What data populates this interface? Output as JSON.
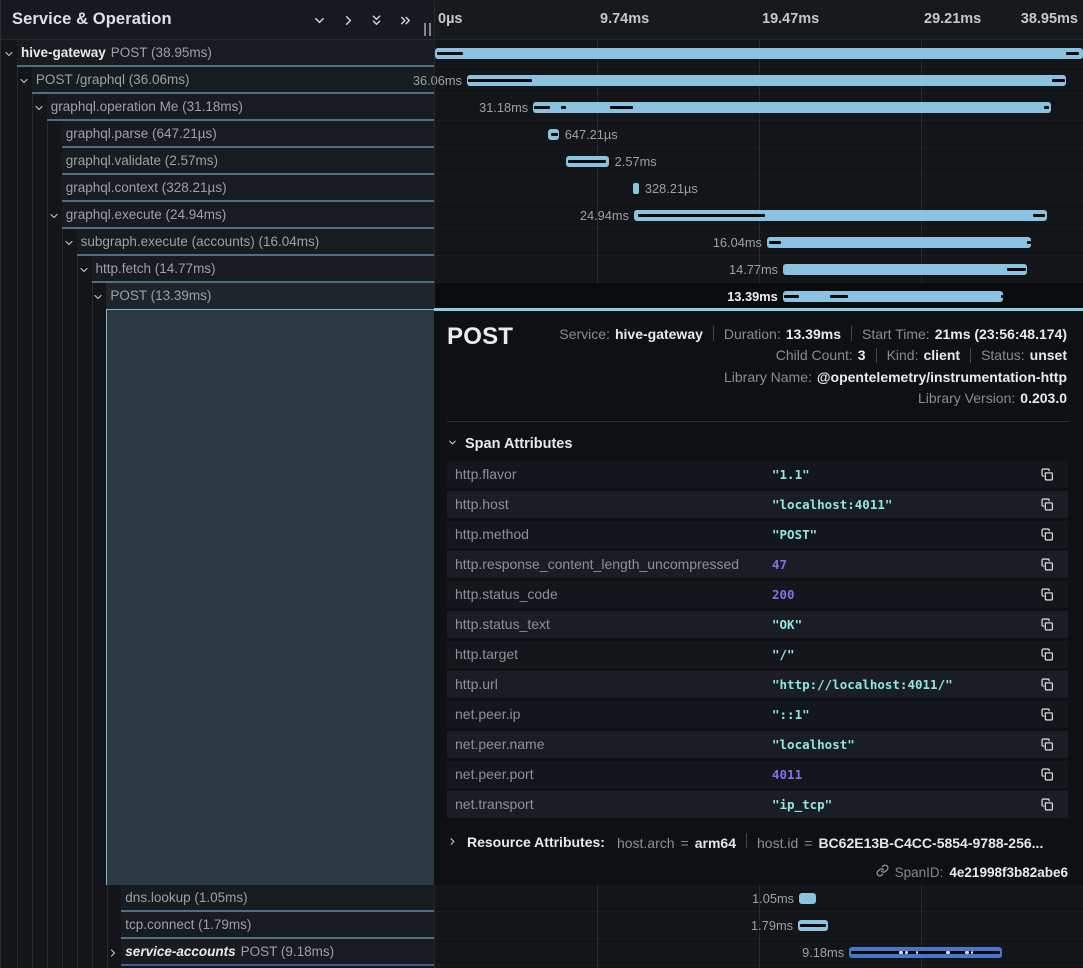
{
  "header": {
    "title": "Service & Operation",
    "icons": [
      {
        "name": "collapse-one-icon",
        "glyph": "chevron-down"
      },
      {
        "name": "expand-one-icon",
        "glyph": "chevron-right"
      },
      {
        "name": "collapse-all-icon",
        "glyph": "double-chevron-down"
      },
      {
        "name": "expand-all-icon",
        "glyph": "double-chevron-right"
      }
    ]
  },
  "timeline": {
    "total_ms": 38.95,
    "ticks": [
      "0µs",
      "9.74ms",
      "19.47ms",
      "29.21ms",
      "38.95ms"
    ]
  },
  "colors": {
    "service_hive_gateway": "#89c3e0",
    "service_accounts": "#4677c8",
    "critical_path": "#06080a",
    "string_value": "#8fe7e0",
    "number_value": "#7b74e8",
    "detail_accent": "#8ecbea"
  },
  "chart_data": {
    "type": "gantt",
    "unit": "ms",
    "xlim": [
      0,
      38.95
    ],
    "spans": [
      {
        "service": "hive-gateway",
        "name": "POST",
        "duration": "38.95ms",
        "level": 0,
        "chevron": "down",
        "color": 1,
        "start": 0,
        "dur": 38.95,
        "label": null,
        "label_pos": null,
        "crit": [
          [
            0.12,
            1.68
          ],
          [
            37.93,
            38.71
          ]
        ],
        "ticks": []
      },
      {
        "service": null,
        "name": "POST /graphql",
        "duration": "36.06ms",
        "level": 1,
        "chevron": "down",
        "color": 1,
        "start": 1.92,
        "dur": 36.0,
        "label": "36.06ms",
        "label_pos": "left",
        "crit": [
          [
            1.98,
            5.83
          ],
          [
            37.09,
            37.87
          ]
        ],
        "ticks": []
      },
      {
        "service": null,
        "name": "graphql.operation Me",
        "duration": "31.18ms",
        "level": 2,
        "chevron": "down",
        "color": 1,
        "start": 5.9,
        "dur": 31.1,
        "label": "31.18ms",
        "label_pos": "left",
        "crit": [
          [
            5.98,
            6.9
          ],
          [
            7.6,
            7.9
          ],
          [
            10.52,
            11.9
          ],
          [
            36.62,
            36.92
          ]
        ],
        "ticks": []
      },
      {
        "service": null,
        "name": "graphql.parse",
        "duration": "647.21µs",
        "level": 3,
        "chevron": null,
        "color": 1,
        "start": 6.79,
        "dur": 0.64721,
        "label": "647.21µs",
        "label_pos": "right",
        "crit": [
          [
            6.95,
            7.38
          ]
        ],
        "ticks": []
      },
      {
        "service": null,
        "name": "graphql.validate",
        "duration": "2.57ms",
        "level": 3,
        "chevron": null,
        "color": 1,
        "start": 7.87,
        "dur": 2.57,
        "label": "2.57ms",
        "label_pos": "right",
        "crit": [
          [
            7.99,
            10.28
          ]
        ],
        "ticks": []
      },
      {
        "service": null,
        "name": "graphql.context",
        "duration": "328.21µs",
        "level": 3,
        "chevron": null,
        "color": 1,
        "start": 11.93,
        "dur": 0.32821,
        "label": "328.21µs",
        "label_pos": "right",
        "crit": [],
        "ticks": []
      },
      {
        "service": null,
        "name": "graphql.execute",
        "duration": "24.94ms",
        "level": 3,
        "chevron": "down",
        "color": 1,
        "start": 11.96,
        "dur": 24.8,
        "label": "24.94ms",
        "label_pos": "left",
        "crit": [
          [
            12.2,
            19.82
          ],
          [
            35.94,
            36.66
          ]
        ],
        "ticks": []
      },
      {
        "service": null,
        "name": "subgraph.execute (accounts)",
        "duration": "16.04ms",
        "level": 4,
        "chevron": "down",
        "color": 1,
        "start": 19.95,
        "dur": 15.9,
        "label": "16.04ms",
        "label_pos": "left",
        "crit": [
          [
            20.08,
            20.8
          ],
          [
            35.58,
            35.8
          ]
        ],
        "ticks": []
      },
      {
        "service": null,
        "name": "http.fetch",
        "duration": "14.77ms",
        "level": 5,
        "chevron": "down",
        "color": 1,
        "start": 20.92,
        "dur": 14.68,
        "label": "14.77ms",
        "label_pos": "left",
        "crit": [
          [
            34.38,
            35.55
          ]
        ],
        "ticks": []
      },
      {
        "service": null,
        "name": "POST",
        "duration": "13.39ms",
        "level": 6,
        "chevron": "down",
        "color": 1,
        "selected": true,
        "start": 20.9,
        "dur": 13.25,
        "label": "13.39ms",
        "label_pos": "left",
        "crit": [
          [
            20.98,
            21.86
          ],
          [
            23.72,
            24.84
          ],
          [
            34.0,
            34.12
          ]
        ],
        "ticks": []
      },
      {
        "service": null,
        "name": "dns.lookup",
        "duration": "1.05ms",
        "level": 7,
        "chevron": null,
        "color": 1,
        "start": 21.88,
        "dur": 1.05,
        "label": "1.05ms",
        "label_pos": "left",
        "crit": [],
        "ticks": []
      },
      {
        "service": null,
        "name": "tcp.connect",
        "duration": "1.79ms",
        "level": 7,
        "chevron": null,
        "color": 1,
        "start": 21.82,
        "dur": 1.79,
        "label": "1.79ms",
        "label_pos": "left",
        "crit": [
          [
            21.95,
            23.5
          ]
        ],
        "ticks": []
      },
      {
        "service": "service-accounts",
        "italic": true,
        "name": "POST",
        "duration": "9.18ms",
        "level": 7,
        "chevron": "right",
        "color": 2,
        "start": 24.89,
        "dur": 9.18,
        "label": "9.18ms",
        "label_pos": "left",
        "crit": [
          [
            24.98,
            33.95
          ]
        ],
        "ticks": [
          [
            27.89,
            28.14
          ],
          [
            28.25,
            28.42
          ],
          [
            28.92,
            29.06
          ],
          [
            30.72,
            30.95
          ],
          [
            31.83,
            32.09
          ],
          [
            32.2,
            32.35
          ]
        ]
      }
    ]
  },
  "detail": {
    "title": "POST",
    "meta_lines": [
      [
        {
          "label": "Service:",
          "value": "hive-gateway"
        },
        {
          "label": "Duration:",
          "value": "13.39ms"
        },
        {
          "label": "Start Time:",
          "value": "21ms (23:56:48.174)"
        }
      ],
      [
        {
          "label": "Child Count:",
          "value": "3"
        },
        {
          "label": "Kind:",
          "value": "client"
        },
        {
          "label": "Status:",
          "value": "unset"
        }
      ],
      [
        {
          "label": "Library Name:",
          "value": "@opentelemetry/instrumentation-http"
        }
      ],
      [
        {
          "label": "Library Version:",
          "value": "0.203.0"
        }
      ]
    ],
    "attributes_title": "Span Attributes",
    "attributes": [
      {
        "key": "http.flavor",
        "value": "\"1.1\"",
        "kind": "str"
      },
      {
        "key": "http.host",
        "value": "\"localhost:4011\"",
        "kind": "str"
      },
      {
        "key": "http.method",
        "value": "\"POST\"",
        "kind": "str"
      },
      {
        "key": "http.response_content_length_uncompressed",
        "value": "47",
        "kind": "num"
      },
      {
        "key": "http.status_code",
        "value": "200",
        "kind": "num"
      },
      {
        "key": "http.status_text",
        "value": "\"OK\"",
        "kind": "str"
      },
      {
        "key": "http.target",
        "value": "\"/\"",
        "kind": "str"
      },
      {
        "key": "http.url",
        "value": "\"http://localhost:4011/\"",
        "kind": "str"
      },
      {
        "key": "net.peer.ip",
        "value": "\"::1\"",
        "kind": "str"
      },
      {
        "key": "net.peer.name",
        "value": "\"localhost\"",
        "kind": "str"
      },
      {
        "key": "net.peer.port",
        "value": "4011",
        "kind": "num"
      },
      {
        "key": "net.transport",
        "value": "\"ip_tcp\"",
        "kind": "str"
      }
    ],
    "resource_title": "Resource Attributes:",
    "resource_pairs": [
      {
        "key": "host.arch",
        "value": "arm64"
      },
      {
        "key": "host.id",
        "value": "BC62E13B-C4CC-5854-9788-256..."
      }
    ],
    "span_id_label": "SpanID:",
    "span_id": "4e21998f3b82abe6"
  }
}
